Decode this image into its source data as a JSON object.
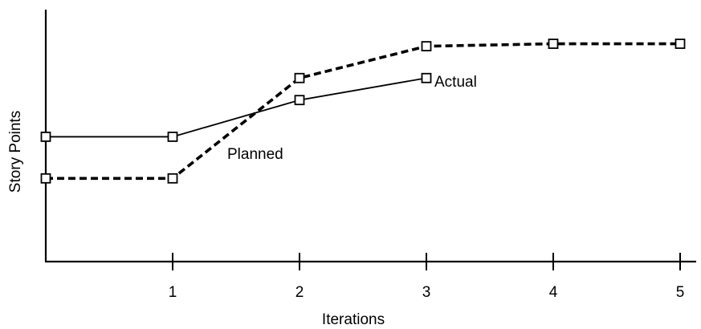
{
  "chart_data": {
    "type": "line",
    "title": "",
    "xlabel": "Iterations",
    "ylabel": "Story Points",
    "xticks": [
      "1",
      "2",
      "3",
      "4",
      "5"
    ],
    "xlim": [
      0,
      5
    ],
    "ylim": [
      0,
      100
    ],
    "grid": false,
    "legend": "none",
    "series": [
      {
        "name": "Actual",
        "style": "solid",
        "x": [
          0,
          1,
          2,
          3
        ],
        "y": [
          51,
          51,
          66,
          75
        ]
      },
      {
        "name": "Planned",
        "style": "dashed",
        "x": [
          0,
          1,
          2,
          3,
          4,
          5
        ],
        "y": [
          34,
          34,
          75,
          88,
          89,
          89
        ]
      }
    ]
  }
}
